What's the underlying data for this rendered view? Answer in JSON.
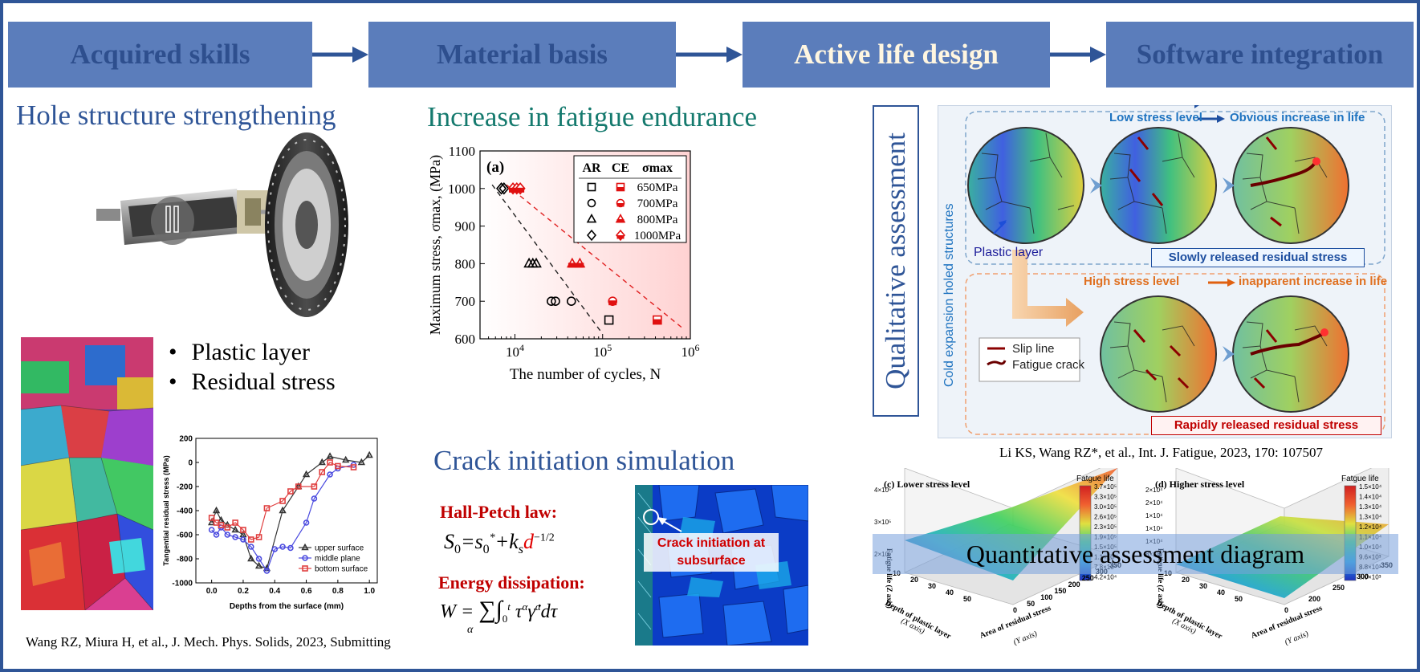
{
  "process": {
    "steps": [
      {
        "label": "Acquired skills",
        "active": false
      },
      {
        "label": "Material basis",
        "active": false
      },
      {
        "label": "Active life design",
        "active": true
      },
      {
        "label": "Software integration",
        "active": false
      }
    ]
  },
  "left": {
    "title": "Hole structure strengthening",
    "bullets": [
      "Plastic layer",
      "Residual stress"
    ],
    "citation": "Wang RZ, Miura H, et al., J. Mech. Phys. Solids, 2023, Submitting"
  },
  "residual_chart": {
    "chart_data": {
      "type": "line",
      "xlabel": "Depths from the surface (mm)",
      "ylabel": "Tangential residual stress (MPa)",
      "xlim": [
        -0.1,
        1.05
      ],
      "ylim": [
        -1000,
        200
      ],
      "x_ticks": [
        "0.0",
        "0.2",
        "0.4",
        "0.6",
        "0.8",
        "1.0"
      ],
      "y_ticks": [
        "200",
        "0",
        "-200",
        "-400",
        "-600",
        "-800",
        "-1000"
      ],
      "legend_position": "bottom-right",
      "series": [
        {
          "name": "upper surface",
          "color": "#333333",
          "marker": "triangle",
          "x": [
            0.0,
            0.03,
            0.06,
            0.1,
            0.15,
            0.2,
            0.25,
            0.3,
            0.35,
            0.45,
            0.55,
            0.6,
            0.7,
            0.75,
            0.85,
            0.95,
            1.0
          ],
          "y": [
            -500,
            -400,
            -480,
            -520,
            -560,
            -600,
            -800,
            -860,
            -880,
            -400,
            -200,
            -100,
            0,
            50,
            20,
            0,
            60
          ]
        },
        {
          "name": "middle plane",
          "color": "#4a4adf",
          "marker": "circle",
          "x": [
            0.0,
            0.03,
            0.06,
            0.1,
            0.15,
            0.2,
            0.25,
            0.3,
            0.35,
            0.4,
            0.45,
            0.5,
            0.6,
            0.65,
            0.75,
            0.8,
            0.9
          ],
          "y": [
            -560,
            -600,
            -540,
            -600,
            -620,
            -640,
            -700,
            -800,
            -900,
            -720,
            -700,
            -710,
            -500,
            -300,
            -100,
            -50,
            -20
          ]
        },
        {
          "name": "bottom surface",
          "color": "#e04040",
          "marker": "square",
          "x": [
            0.0,
            0.03,
            0.06,
            0.1,
            0.15,
            0.2,
            0.25,
            0.3,
            0.35,
            0.45,
            0.5,
            0.55,
            0.65,
            0.7,
            0.75,
            0.8,
            0.9
          ],
          "y": [
            -460,
            -500,
            -520,
            -540,
            -500,
            -560,
            -640,
            -620,
            -380,
            -320,
            -240,
            -200,
            -200,
            -80,
            0,
            -30,
            -40
          ]
        }
      ]
    }
  },
  "fatigue_chart": {
    "title": "Increase in fatigue endurance",
    "chart_data": {
      "type": "scatter",
      "panel_label": "(a)",
      "xlabel": "The number of cycles, N",
      "ylabel": "Maximum stress, σmax, (MPa)",
      "x_scale": "log",
      "xlim": [
        4000,
        1000000
      ],
      "ylim": [
        600,
        1100
      ],
      "x_ticks": [
        {
          "base": "10",
          "exp": "4",
          "v": 10000
        },
        {
          "base": "10",
          "exp": "5",
          "v": 100000
        },
        {
          "base": "10",
          "exp": "6",
          "v": 1000000
        }
      ],
      "y_ticks": [
        600,
        700,
        800,
        900,
        1000,
        1100
      ],
      "legend_position": "top-right",
      "legend_headers": [
        "AR",
        "CE",
        "σmax"
      ],
      "legend_rows": [
        {
          "label": "650MPa",
          "marker": "square"
        },
        {
          "label": "700MPa",
          "marker": "circle"
        },
        {
          "label": "800MPa",
          "marker": "triangle"
        },
        {
          "label": "1000MPa",
          "marker": "diamond"
        }
      ],
      "series": [
        {
          "name": "AR",
          "color": "#000000",
          "points": [
            {
              "x": 7000,
              "y": 1000,
              "m": "diamond"
            },
            {
              "x": 7500,
              "y": 1000,
              "m": "diamond"
            },
            {
              "x": 14500,
              "y": 800,
              "m": "triangle"
            },
            {
              "x": 16000,
              "y": 800,
              "m": "triangle"
            },
            {
              "x": 17500,
              "y": 800,
              "m": "triangle"
            },
            {
              "x": 26000,
              "y": 700,
              "m": "circle"
            },
            {
              "x": 29000,
              "y": 700,
              "m": "circle"
            },
            {
              "x": 44000,
              "y": 700,
              "m": "circle"
            },
            {
              "x": 118000,
              "y": 650,
              "m": "square"
            }
          ]
        },
        {
          "name": "CE",
          "color": "#e01010",
          "points": [
            {
              "x": 9500,
              "y": 1000,
              "m": "diamond"
            },
            {
              "x": 10500,
              "y": 1000,
              "m": "diamond"
            },
            {
              "x": 11500,
              "y": 1000,
              "m": "diamond"
            },
            {
              "x": 45000,
              "y": 800,
              "m": "triangle"
            },
            {
              "x": 55000,
              "y": 800,
              "m": "triangle"
            },
            {
              "x": 130000,
              "y": 700,
              "m": "circle"
            },
            {
              "x": 420000,
              "y": 650,
              "m": "square"
            }
          ]
        }
      ],
      "fits": [
        {
          "color": "#222222",
          "x": [
            5500,
            95000
          ],
          "y": [
            1010,
            620
          ]
        },
        {
          "color": "#e02020",
          "x": [
            8000,
            850000
          ],
          "y": [
            1010,
            625
          ]
        }
      ]
    }
  },
  "crack": {
    "title": "Crack initiation simulation",
    "hall_petch_label": "Hall-Petch law:",
    "energy_label": "Energy dissipation:",
    "sim_label": "Crack initiation at subsurface"
  },
  "qualitative": {
    "title": "Qualitative assessment",
    "vertical_label": "Cold expansion holed structures",
    "low_title_a": "Low stress level",
    "low_title_b": "Obvious increase in life",
    "plastic_layer": "Plastic layer",
    "low_result": "Slowly released residual stress",
    "high_title_a": "High stress level",
    "high_title_b": "inapparent increase in life",
    "high_result": "Rapidly released residual stress",
    "legend_slip": "Slip line",
    "legend_crack": "Fatigue crack",
    "citation": "Li KS, Wang RZ*, et al., Int. J. Fatigue, 2023, 170: 107507"
  },
  "quantitative": {
    "banner": "Quantitative assessment diagram",
    "panel_c": {
      "label": "(c) Lower stress level",
      "colorbar_title": "Fatgue life",
      "colorbar_ticks": [
        "3.7×10⁵",
        "3.3×10⁵",
        "3.0×10⁵",
        "2.6×10⁵",
        "2.3×10⁵",
        "1.9×10⁵",
        "1.5×10⁵",
        "1.1×10⁵",
        "7.8×10⁴",
        "4.2×10⁴"
      ],
      "z_ticks": [
        "4×10⁵",
        "3×10⁵",
        "2×10⁵"
      ],
      "z_label": "Fatigue life (Z axis)",
      "x_label_a": "Depth of plastic layer",
      "x_label_b": "(X axis)",
      "y_label_a": "Area of residual stress",
      "y_label_b": "(Y axis)",
      "x_ticks": [
        "10",
        "20",
        "30",
        "40",
        "50"
      ],
      "y_ticks": [
        "0",
        "50",
        "100",
        "150",
        "200",
        "250",
        "300",
        "350"
      ]
    },
    "panel_d": {
      "label": "(d) Higher stress level",
      "colorbar_title": "Fatgue life",
      "colorbar_ticks": [
        "1.5×10⁴",
        "1.4×10⁴",
        "1.3×10⁴",
        "1.3×10⁴",
        "1.2×10⁴",
        "1.1×10⁴",
        "1.0×10⁴",
        "9.6×10³",
        "8.8×10³",
        "8.0×10³"
      ],
      "z_ticks": [
        "2×10⁴",
        "2×10⁴",
        "1×10⁴",
        "1×10⁴",
        "1×10⁴",
        "8×10³"
      ],
      "z_label": "Fatigue life (Z axis)",
      "x_label_a": "Depth of plastic layer",
      "x_label_b": "(X axis)",
      "y_label_a": "Area of residual stress",
      "y_label_b": "(Y axis)",
      "x_ticks": [
        "10",
        "20",
        "30",
        "40",
        "50"
      ],
      "y_ticks": [
        "0",
        "200",
        "250",
        "300",
        "350"
      ]
    }
  }
}
